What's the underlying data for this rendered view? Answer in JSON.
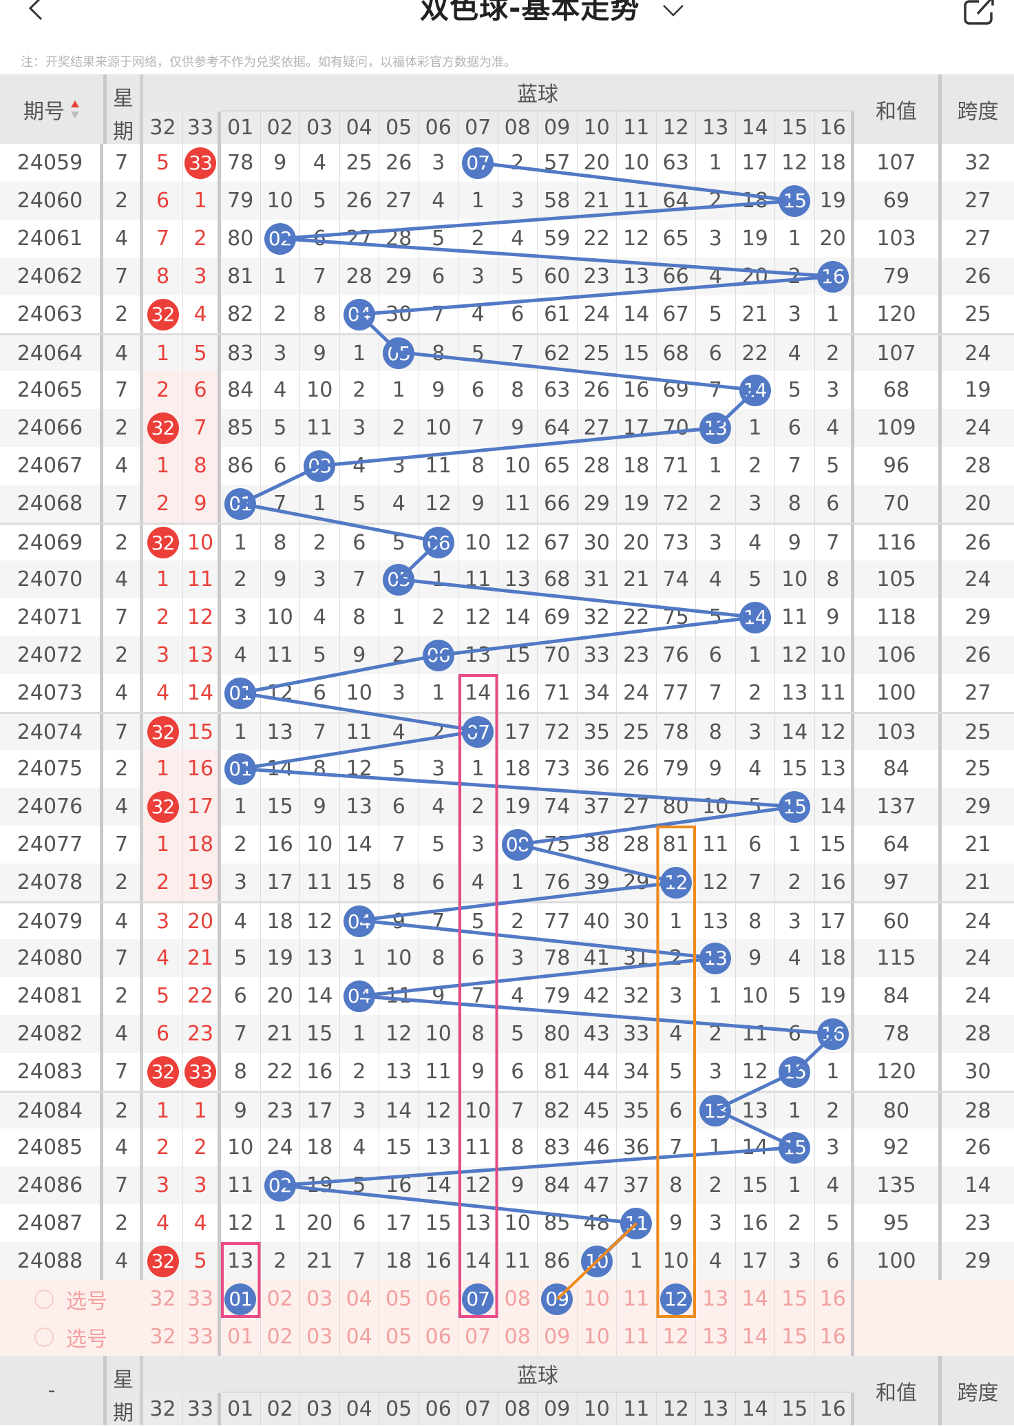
{
  "nav": {
    "back_icon": "chevron-left-icon",
    "title": "双色球-基本走势",
    "dropdown_icon": "chevron-down-icon",
    "share_icon": "share-icon"
  },
  "note": "注：开奖结果来源于网络，仅供参考不作为兑奖依据。如有疑问，以福体彩官方数据为准。",
  "header": {
    "period": "期号",
    "weekday_top": "星",
    "weekday_bottom": "期",
    "blue_group": "蓝球",
    "sum": "和值",
    "span": "跨度",
    "red_cols": [
      "32",
      "33"
    ],
    "blue_cols": [
      "01",
      "02",
      "03",
      "04",
      "05",
      "06",
      "07",
      "08",
      "09",
      "10",
      "11",
      "12",
      "13",
      "14",
      "15",
      "16"
    ]
  },
  "footer_header": {
    "period": "-",
    "weekday_top": "星",
    "weekday_bottom": "期",
    "blue_group": "蓝球",
    "sum": "和值",
    "span": "跨度"
  },
  "colors": {
    "red": "#ec3f3a",
    "blue": "#5279c5",
    "pink_box": "#e84a86",
    "orange_box": "#f08a1c"
  },
  "rows": [
    {
      "p": "24059",
      "w": "7",
      "r": [
        "5",
        "33"
      ],
      "b": [
        "78",
        "9",
        "4",
        "25",
        "26",
        "3",
        "07",
        "2",
        "57",
        "20",
        "10",
        "63",
        "1",
        "17",
        "12",
        "18"
      ],
      "hit": 7,
      "sum": "107",
      "span": "32"
    },
    {
      "p": "24060",
      "w": "2",
      "r": [
        "6",
        "1"
      ],
      "b": [
        "79",
        "10",
        "5",
        "26",
        "27",
        "4",
        "1",
        "3",
        "58",
        "21",
        "11",
        "64",
        "2",
        "18",
        "15",
        "19"
      ],
      "hit": 15,
      "sum": "69",
      "span": "27"
    },
    {
      "p": "24061",
      "w": "4",
      "r": [
        "7",
        "2"
      ],
      "b": [
        "80",
        "02",
        "6",
        "27",
        "28",
        "5",
        "2",
        "4",
        "59",
        "22",
        "12",
        "65",
        "3",
        "19",
        "1",
        "20"
      ],
      "hit": 2,
      "sum": "103",
      "span": "27"
    },
    {
      "p": "24062",
      "w": "7",
      "r": [
        "8",
        "3"
      ],
      "b": [
        "81",
        "1",
        "7",
        "28",
        "29",
        "6",
        "3",
        "5",
        "60",
        "23",
        "13",
        "66",
        "4",
        "20",
        "2",
        "16"
      ],
      "hit": 16,
      "sum": "79",
      "span": "26"
    },
    {
      "p": "24063",
      "w": "2",
      "r": [
        "32",
        "4"
      ],
      "b": [
        "82",
        "2",
        "8",
        "04",
        "30",
        "7",
        "4",
        "6",
        "61",
        "24",
        "14",
        "67",
        "5",
        "21",
        "3",
        "1"
      ],
      "hit": 4,
      "sum": "120",
      "span": "25"
    },
    {
      "p": "24064",
      "w": "4",
      "r": [
        "1",
        "5"
      ],
      "b": [
        "83",
        "3",
        "9",
        "1",
        "05",
        "8",
        "5",
        "7",
        "62",
        "25",
        "15",
        "68",
        "6",
        "22",
        "4",
        "2"
      ],
      "hit": 5,
      "sum": "107",
      "span": "24"
    },
    {
      "p": "24065",
      "w": "7",
      "r": [
        "2",
        "6"
      ],
      "b": [
        "84",
        "4",
        "10",
        "2",
        "1",
        "9",
        "6",
        "8",
        "63",
        "26",
        "16",
        "69",
        "7",
        "14",
        "5",
        "3"
      ],
      "hit": 14,
      "sum": "68",
      "span": "19"
    },
    {
      "p": "24066",
      "w": "2",
      "r": [
        "32",
        "7"
      ],
      "b": [
        "85",
        "5",
        "11",
        "3",
        "2",
        "10",
        "7",
        "9",
        "64",
        "27",
        "17",
        "70",
        "13",
        "1",
        "6",
        "4"
      ],
      "hit": 13,
      "sum": "109",
      "span": "24"
    },
    {
      "p": "24067",
      "w": "4",
      "r": [
        "1",
        "8"
      ],
      "b": [
        "86",
        "6",
        "03",
        "4",
        "3",
        "11",
        "8",
        "10",
        "65",
        "28",
        "18",
        "71",
        "1",
        "2",
        "7",
        "5"
      ],
      "hit": 3,
      "sum": "96",
      "span": "28"
    },
    {
      "p": "24068",
      "w": "7",
      "r": [
        "2",
        "9"
      ],
      "b": [
        "01",
        "7",
        "1",
        "5",
        "4",
        "12",
        "9",
        "11",
        "66",
        "29",
        "19",
        "72",
        "2",
        "3",
        "8",
        "6"
      ],
      "hit": 1,
      "sum": "70",
      "span": "20"
    },
    {
      "p": "24069",
      "w": "2",
      "r": [
        "32",
        "10"
      ],
      "b": [
        "1",
        "8",
        "2",
        "6",
        "5",
        "06",
        "10",
        "12",
        "67",
        "30",
        "20",
        "73",
        "3",
        "4",
        "9",
        "7"
      ],
      "hit": 6,
      "sum": "116",
      "span": "26"
    },
    {
      "p": "24070",
      "w": "4",
      "r": [
        "1",
        "11"
      ],
      "b": [
        "2",
        "9",
        "3",
        "7",
        "05",
        "1",
        "11",
        "13",
        "68",
        "31",
        "21",
        "74",
        "4",
        "5",
        "10",
        "8"
      ],
      "hit": 5,
      "sum": "105",
      "span": "24"
    },
    {
      "p": "24071",
      "w": "7",
      "r": [
        "2",
        "12"
      ],
      "b": [
        "3",
        "10",
        "4",
        "8",
        "1",
        "2",
        "12",
        "14",
        "69",
        "32",
        "22",
        "75",
        "5",
        "14",
        "11",
        "9"
      ],
      "hit": 14,
      "sum": "118",
      "span": "29"
    },
    {
      "p": "24072",
      "w": "2",
      "r": [
        "3",
        "13"
      ],
      "b": [
        "4",
        "11",
        "5",
        "9",
        "2",
        "06",
        "13",
        "15",
        "70",
        "33",
        "23",
        "76",
        "6",
        "1",
        "12",
        "10"
      ],
      "hit": 6,
      "sum": "106",
      "span": "26"
    },
    {
      "p": "24073",
      "w": "4",
      "r": [
        "4",
        "14"
      ],
      "b": [
        "01",
        "12",
        "6",
        "10",
        "3",
        "1",
        "14",
        "16",
        "71",
        "34",
        "24",
        "77",
        "7",
        "2",
        "13",
        "11"
      ],
      "hit": 1,
      "sum": "100",
      "span": "27"
    },
    {
      "p": "24074",
      "w": "7",
      "r": [
        "32",
        "15"
      ],
      "b": [
        "1",
        "13",
        "7",
        "11",
        "4",
        "2",
        "07",
        "17",
        "72",
        "35",
        "25",
        "78",
        "8",
        "3",
        "14",
        "12"
      ],
      "hit": 7,
      "sum": "103",
      "span": "25"
    },
    {
      "p": "24075",
      "w": "2",
      "r": [
        "1",
        "16"
      ],
      "b": [
        "01",
        "14",
        "8",
        "12",
        "5",
        "3",
        "1",
        "18",
        "73",
        "36",
        "26",
        "79",
        "9",
        "4",
        "15",
        "13"
      ],
      "hit": 1,
      "sum": "84",
      "span": "25"
    },
    {
      "p": "24076",
      "w": "4",
      "r": [
        "32",
        "17"
      ],
      "b": [
        "1",
        "15",
        "9",
        "13",
        "6",
        "4",
        "2",
        "19",
        "74",
        "37",
        "27",
        "80",
        "10",
        "5",
        "15",
        "14"
      ],
      "hit": 15,
      "sum": "137",
      "span": "29"
    },
    {
      "p": "24077",
      "w": "7",
      "r": [
        "1",
        "18"
      ],
      "b": [
        "2",
        "16",
        "10",
        "14",
        "7",
        "5",
        "3",
        "08",
        "75",
        "38",
        "28",
        "81",
        "11",
        "6",
        "1",
        "15"
      ],
      "hit": 8,
      "sum": "64",
      "span": "21"
    },
    {
      "p": "24078",
      "w": "2",
      "r": [
        "2",
        "19"
      ],
      "b": [
        "3",
        "17",
        "11",
        "15",
        "8",
        "6",
        "4",
        "1",
        "76",
        "39",
        "29",
        "12",
        "12",
        "7",
        "2",
        "16"
      ],
      "hit": 12,
      "sum": "97",
      "span": "21"
    },
    {
      "p": "24079",
      "w": "4",
      "r": [
        "3",
        "20"
      ],
      "b": [
        "4",
        "18",
        "12",
        "04",
        "9",
        "7",
        "5",
        "2",
        "77",
        "40",
        "30",
        "1",
        "13",
        "8",
        "3",
        "17"
      ],
      "hit": 4,
      "sum": "60",
      "span": "24"
    },
    {
      "p": "24080",
      "w": "7",
      "r": [
        "4",
        "21"
      ],
      "b": [
        "5",
        "19",
        "13",
        "1",
        "10",
        "8",
        "6",
        "3",
        "78",
        "41",
        "31",
        "2",
        "13",
        "9",
        "4",
        "18"
      ],
      "hit": 13,
      "sum": "115",
      "span": "24"
    },
    {
      "p": "24081",
      "w": "2",
      "r": [
        "5",
        "22"
      ],
      "b": [
        "6",
        "20",
        "14",
        "04",
        "11",
        "9",
        "7",
        "4",
        "79",
        "42",
        "32",
        "3",
        "1",
        "10",
        "5",
        "19"
      ],
      "hit": 4,
      "sum": "84",
      "span": "24"
    },
    {
      "p": "24082",
      "w": "4",
      "r": [
        "6",
        "23"
      ],
      "b": [
        "7",
        "21",
        "15",
        "1",
        "12",
        "10",
        "8",
        "5",
        "80",
        "43",
        "33",
        "4",
        "2",
        "11",
        "6",
        "16"
      ],
      "hit": 16,
      "sum": "78",
      "span": "28"
    },
    {
      "p": "24083",
      "w": "7",
      "r": [
        "32",
        "33"
      ],
      "b": [
        "8",
        "22",
        "16",
        "2",
        "13",
        "11",
        "9",
        "6",
        "81",
        "44",
        "34",
        "5",
        "3",
        "12",
        "15",
        "1"
      ],
      "hit": 15,
      "sum": "120",
      "span": "30"
    },
    {
      "p": "24084",
      "w": "2",
      "r": [
        "1",
        "1"
      ],
      "b": [
        "9",
        "23",
        "17",
        "3",
        "14",
        "12",
        "10",
        "7",
        "82",
        "45",
        "35",
        "6",
        "13",
        "13",
        "1",
        "2"
      ],
      "hit": 13,
      "sum": "80",
      "span": "28"
    },
    {
      "p": "24085",
      "w": "4",
      "r": [
        "2",
        "2"
      ],
      "b": [
        "10",
        "24",
        "18",
        "4",
        "15",
        "13",
        "11",
        "8",
        "83",
        "46",
        "36",
        "7",
        "1",
        "14",
        "15",
        "3"
      ],
      "hit": 15,
      "sum": "92",
      "span": "26"
    },
    {
      "p": "24086",
      "w": "7",
      "r": [
        "3",
        "3"
      ],
      "b": [
        "11",
        "02",
        "19",
        "5",
        "16",
        "14",
        "12",
        "9",
        "84",
        "47",
        "37",
        "8",
        "2",
        "15",
        "1",
        "4"
      ],
      "hit": 2,
      "sum": "135",
      "span": "14"
    },
    {
      "p": "24087",
      "w": "2",
      "r": [
        "4",
        "4"
      ],
      "b": [
        "12",
        "1",
        "20",
        "6",
        "17",
        "15",
        "13",
        "10",
        "85",
        "48",
        "11",
        "9",
        "3",
        "16",
        "2",
        "5"
      ],
      "hit": 11,
      "sum": "95",
      "span": "23"
    },
    {
      "p": "24088",
      "w": "4",
      "r": [
        "32",
        "5"
      ],
      "b": [
        "13",
        "2",
        "21",
        "7",
        "18",
        "16",
        "14",
        "11",
        "86",
        "10",
        "1",
        "10",
        "4",
        "17",
        "3",
        "6"
      ],
      "hit": 10,
      "sum": "100",
      "span": "29"
    }
  ],
  "select_rows": [
    {
      "label": "选号",
      "red": [
        "32",
        "33"
      ],
      "blue": [
        "01",
        "02",
        "03",
        "04",
        "05",
        "06",
        "07",
        "08",
        "09",
        "10",
        "11",
        "12",
        "13",
        "14",
        "15",
        "16"
      ],
      "selected_blue": [
        1,
        7,
        9,
        12
      ]
    },
    {
      "label": "选号",
      "red": [
        "32",
        "33"
      ],
      "blue": [
        "01",
        "02",
        "03",
        "04",
        "05",
        "06",
        "07",
        "08",
        "09",
        "10",
        "11",
        "12",
        "13",
        "14",
        "15",
        "16"
      ],
      "selected_blue": []
    }
  ],
  "annotations": [
    {
      "type": "box",
      "color": "pink",
      "blue_col": 7,
      "from_period": "24073",
      "to": "select-1"
    },
    {
      "type": "box",
      "color": "pink",
      "blue_col": 1,
      "from_period": "24088",
      "to": "select-1"
    },
    {
      "type": "box",
      "color": "orange",
      "blue_col": 12,
      "from_period": "24077",
      "to": "select-1"
    },
    {
      "type": "line",
      "color": "orange",
      "from": {
        "row": "select-1",
        "blue_col": 9
      },
      "to": {
        "period": "24087",
        "blue_col": 11
      }
    }
  ],
  "pink_band_periods": [
    "24065",
    "24066",
    "24067",
    "24068",
    "24075",
    "24076",
    "24077",
    "24078"
  ]
}
